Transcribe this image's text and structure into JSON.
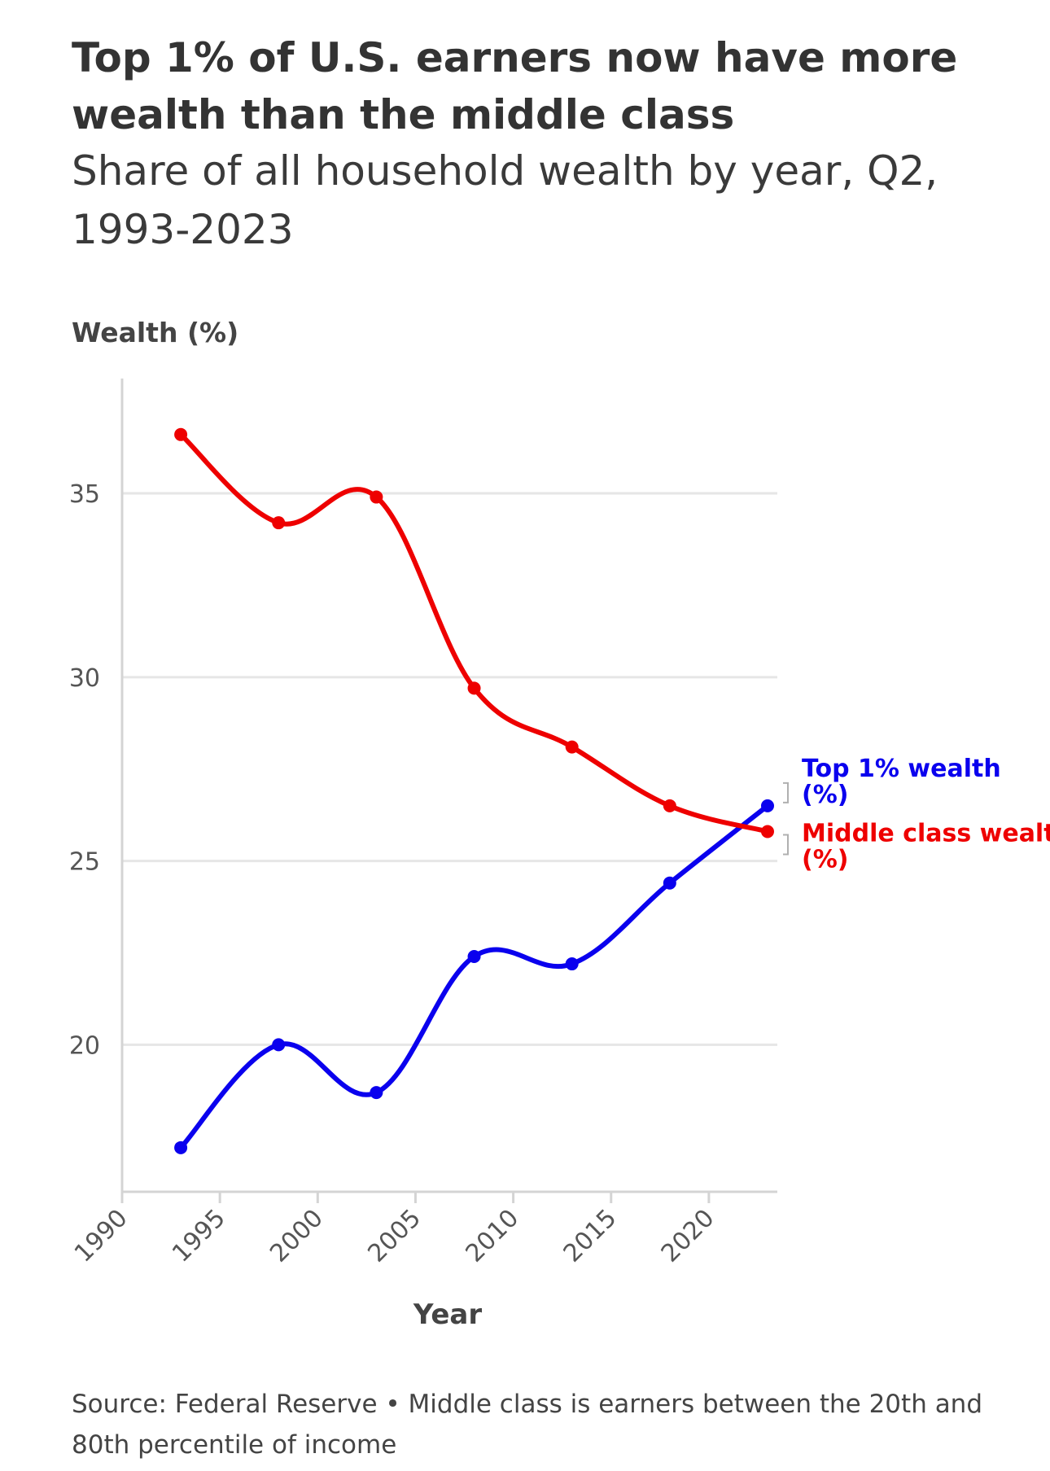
{
  "title": "Top 1% of U.S. earners now have more wealth than the middle class",
  "subtitle": "Share of all household wealth by year, Q2, 1993-2023",
  "source": "Source: Federal Reserve • Middle class is earners between the 20th and 80th percentile of income",
  "colors": {
    "top1": "#0a00ee",
    "middle": "#ee0000",
    "grid": "#e6e6e6",
    "axis": "#d4d4d4",
    "text": "#333333"
  },
  "chart_data": {
    "type": "line",
    "ylabel": "Wealth (%)",
    "xlabel": "Year",
    "xlim": [
      1990,
      2023.5
    ],
    "ylim": [
      16,
      38.5
    ],
    "x_ticks": [
      1990,
      1995,
      2000,
      2005,
      2010,
      2015,
      2020
    ],
    "y_ticks": [
      20,
      25,
      30,
      35
    ],
    "grid": true,
    "legend": "direct labels at line ends, right",
    "series": [
      {
        "name": "Top 1% wealth (%)",
        "color": "#0a00ee",
        "x": [
          1993,
          1998,
          2003,
          2008,
          2013,
          2018,
          2023
        ],
        "y": [
          17.2,
          20.0,
          18.7,
          22.4,
          22.2,
          24.4,
          26.5
        ]
      },
      {
        "name": "Middle class wealth (%)",
        "color": "#ee0000",
        "x": [
          1993,
          1998,
          2003,
          2008,
          2013,
          2018,
          2023
        ],
        "y": [
          36.6,
          34.2,
          34.9,
          29.7,
          28.1,
          26.5,
          25.8
        ]
      }
    ]
  }
}
